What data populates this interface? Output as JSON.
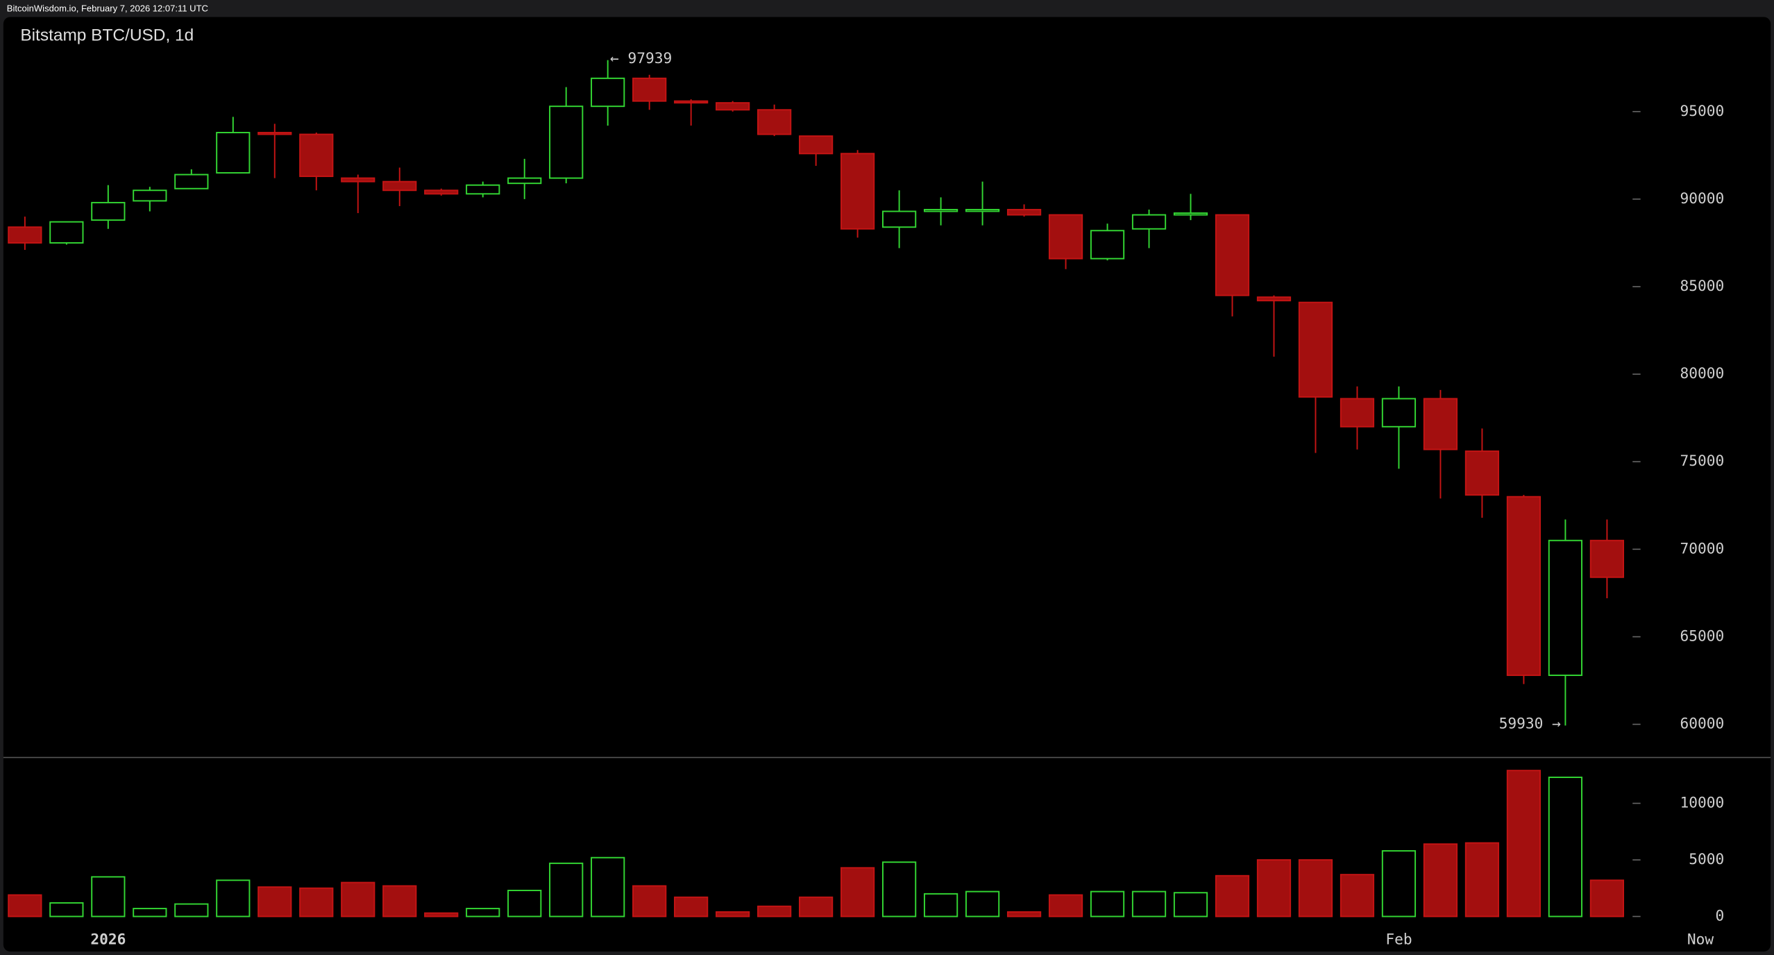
{
  "header": "BitcoinWisdom.io, February 7, 2026 12:07:11 UTC",
  "chart_data": {
    "type": "candlestick",
    "title": "Bitstamp BTC/USD, 1d",
    "categories": [
      null,
      null,
      "2026",
      null,
      null,
      null,
      null,
      null,
      null,
      null,
      null,
      null,
      null,
      null,
      null,
      null,
      null,
      null,
      null,
      null,
      null,
      null,
      null,
      null,
      null,
      null,
      null,
      null,
      null,
      null,
      null,
      null,
      null,
      "Feb",
      null,
      null,
      null,
      null,
      null
    ],
    "open": [
      88400,
      87500,
      88800,
      89900,
      90600,
      91500,
      93800,
      93700,
      91200,
      91000,
      90500,
      90300,
      90900,
      91200,
      95300,
      96900,
      95600,
      95500,
      95100,
      93600,
      92600,
      88400,
      89300,
      89400,
      89400,
      89100,
      86600,
      88300,
      89100,
      89100,
      84400,
      84100,
      78600,
      77000,
      78600,
      75600,
      73000,
      62800,
      70500
    ],
    "high": [
      89000,
      88700,
      90800,
      90700,
      91700,
      94700,
      94300,
      93800,
      91400,
      91800,
      90600,
      91000,
      92300,
      96400,
      97939,
      97100,
      95700,
      95600,
      95400,
      93600,
      92800,
      90500,
      90100,
      91000,
      89700,
      89100,
      88600,
      89400,
      90300,
      89100,
      84500,
      84100,
      79300,
      79300,
      79100,
      76900,
      73100,
      71700,
      71700
    ],
    "low": [
      87100,
      87400,
      88300,
      89300,
      90600,
      91500,
      91200,
      90500,
      89200,
      89600,
      90200,
      90100,
      90000,
      90900,
      94200,
      95100,
      94200,
      95000,
      93600,
      91900,
      87800,
      87200,
      88500,
      88500,
      89000,
      86000,
      86500,
      87200,
      88800,
      83300,
      81000,
      75500,
      75700,
      74600,
      72900,
      71800,
      62300,
      59930,
      67200
    ],
    "close": [
      87500,
      88700,
      89800,
      90500,
      91400,
      93800,
      93700,
      91300,
      91000,
      90500,
      90300,
      90800,
      91200,
      95300,
      96900,
      95600,
      95500,
      95100,
      93700,
      92600,
      88300,
      89300,
      89400,
      89400,
      89100,
      86600,
      88200,
      89100,
      89200,
      84500,
      84200,
      78700,
      77000,
      78600,
      75700,
      73100,
      62800,
      70500,
      68400
    ],
    "volume": [
      1900,
      1200,
      3500,
      700,
      1100,
      3200,
      2600,
      2500,
      3000,
      2700,
      300,
      700,
      2300,
      4700,
      5200,
      2700,
      1700,
      400,
      900,
      1700,
      4300,
      4800,
      2000,
      2200,
      400,
      1900,
      2200,
      2200,
      2100,
      3600,
      5000,
      5000,
      3700,
      5800,
      6400,
      6500,
      12900,
      12300,
      3200
    ],
    "up_color": "#33d633",
    "down_color": "#a30f0f",
    "ylim": [
      58200,
      100400
    ],
    "yticks": [
      60000,
      65000,
      70000,
      75000,
      80000,
      85000,
      90000,
      95000
    ],
    "volume_ylim": [
      0,
      13800
    ],
    "volume_yticks": [
      0,
      5000,
      10000
    ],
    "max_label": "← 97939",
    "min_label": "59930 →",
    "now_label": "Now"
  }
}
